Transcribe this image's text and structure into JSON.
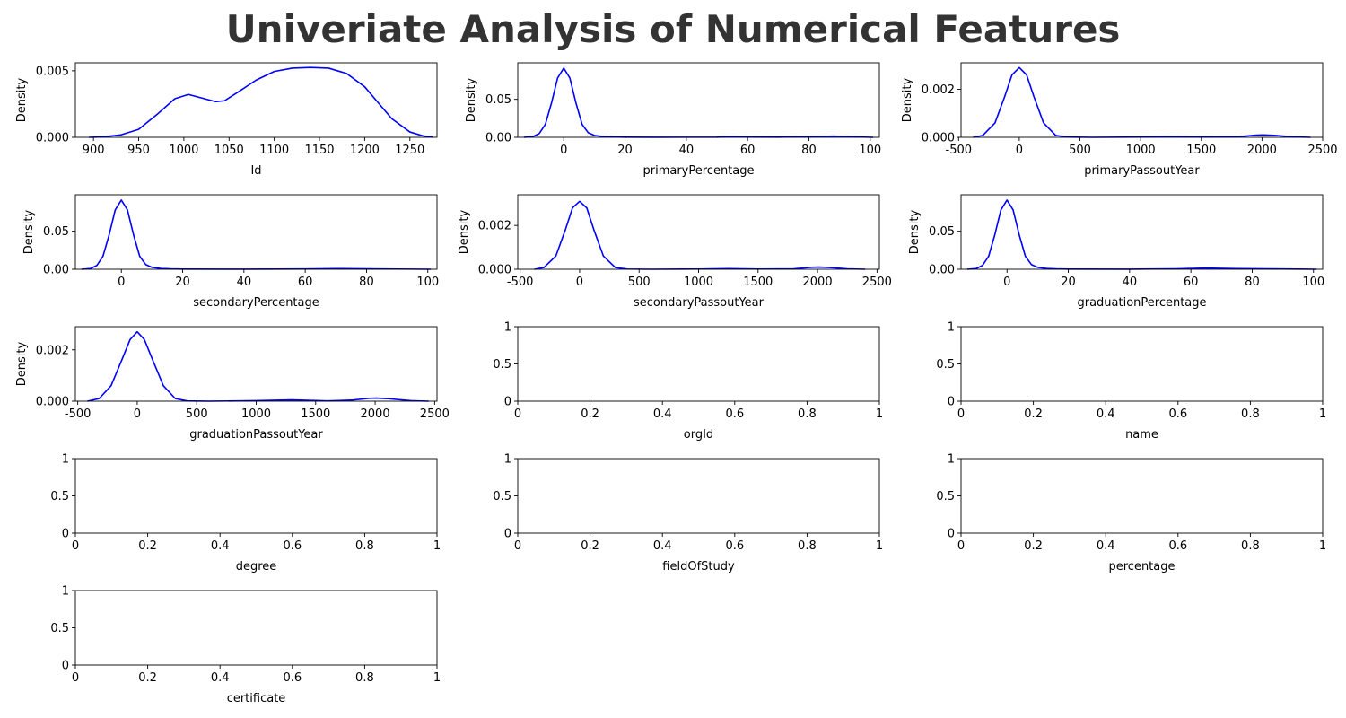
{
  "title": "Univeriate Analysis of Numerical Features",
  "colors": {
    "line": "#0000ff",
    "axis": "#000000",
    "title": "#333333"
  },
  "chart_data": [
    {
      "type": "line",
      "xlabel": "Id",
      "ylabel": "Density",
      "xlim": [
        880,
        1280
      ],
      "ylim": [
        0,
        0.0056
      ],
      "xticks": [
        900,
        950,
        1000,
        1050,
        1100,
        1150,
        1200,
        1250
      ],
      "yticks": [
        0,
        0.005
      ],
      "ytick_labels": [
        "0.000",
        "0.005"
      ],
      "x": [
        895,
        910,
        930,
        950,
        970,
        990,
        1005,
        1020,
        1035,
        1045,
        1060,
        1080,
        1100,
        1120,
        1140,
        1160,
        1180,
        1200,
        1215,
        1230,
        1250,
        1265,
        1275
      ],
      "y": [
        0.0,
        3e-05,
        0.00018,
        0.0006,
        0.0017,
        0.0029,
        0.00322,
        0.00295,
        0.00268,
        0.00275,
        0.0034,
        0.0043,
        0.00495,
        0.0052,
        0.00525,
        0.0052,
        0.0048,
        0.0038,
        0.0026,
        0.0014,
        0.0004,
        0.0001,
        2e-05
      ]
    },
    {
      "type": "line",
      "xlabel": "primaryPercentage",
      "ylabel": "Density",
      "xlim": [
        -15,
        103
      ],
      "ylim": [
        0,
        0.098
      ],
      "xticks": [
        0,
        20,
        40,
        60,
        80,
        100
      ],
      "yticks": [
        0,
        0.05
      ],
      "ytick_labels": [
        "0.00",
        "0.05"
      ],
      "x": [
        -13,
        -10,
        -8,
        -6,
        -4,
        -2,
        0,
        2,
        4,
        6,
        8,
        10,
        13,
        16,
        20,
        30,
        50,
        55,
        60,
        70,
        80,
        88,
        95,
        101
      ],
      "y": [
        0.0,
        0.001,
        0.005,
        0.017,
        0.045,
        0.078,
        0.091,
        0.078,
        0.045,
        0.017,
        0.006,
        0.0025,
        0.001,
        0.0005,
        0.0002,
        0.0001,
        0.0002,
        0.0008,
        0.0004,
        0.0002,
        0.0008,
        0.0015,
        0.0006,
        0.0
      ]
    },
    {
      "type": "line",
      "xlabel": "primaryPassoutYear",
      "ylabel": "Density",
      "xlim": [
        -480,
        2500
      ],
      "ylim": [
        0,
        0.0031
      ],
      "xticks": [
        -500,
        0,
        500,
        1000,
        1500,
        2000,
        2500
      ],
      "yticks": [
        0,
        0.002
      ],
      "ytick_labels": [
        "0.000",
        "0.002"
      ],
      "x": [
        -380,
        -300,
        -200,
        -120,
        -60,
        0,
        60,
        120,
        200,
        300,
        400,
        600,
        1000,
        1250,
        1500,
        1800,
        1950,
        2010,
        2100,
        2250,
        2400
      ],
      "y": [
        0.0,
        8e-05,
        0.0006,
        0.0017,
        0.0026,
        0.0029,
        0.0026,
        0.0017,
        0.0006,
        8e-05,
        1e-05,
        0.0,
        1e-05,
        3e-05,
        1e-05,
        2e-05,
        9e-05,
        0.0001,
        8e-05,
        2e-05,
        0.0
      ]
    },
    {
      "type": "line",
      "xlabel": "secondaryPercentage",
      "ylabel": "Density",
      "xlim": [
        -15,
        103
      ],
      "ylim": [
        0,
        0.098
      ],
      "xticks": [
        0,
        20,
        40,
        60,
        80,
        100
      ],
      "yticks": [
        0,
        0.05
      ],
      "ytick_labels": [
        "0.00",
        "0.05"
      ],
      "x": [
        -13,
        -10,
        -8,
        -6,
        -4,
        -2,
        0,
        2,
        4,
        6,
        8,
        10,
        13,
        16,
        20,
        40,
        60,
        70,
        80,
        90,
        101
      ],
      "y": [
        0.0,
        0.001,
        0.005,
        0.017,
        0.045,
        0.078,
        0.091,
        0.078,
        0.045,
        0.017,
        0.006,
        0.0025,
        0.001,
        0.0005,
        0.0002,
        0.0001,
        0.0004,
        0.0009,
        0.0005,
        0.0003,
        0.0
      ]
    },
    {
      "type": "line",
      "xlabel": "secondaryPassoutYear",
      "ylabel": "Density",
      "xlim": [
        -520,
        2520
      ],
      "ylim": [
        0,
        0.0034
      ],
      "xticks": [
        -500,
        0,
        500,
        1000,
        1500,
        2000,
        2500
      ],
      "yticks": [
        0,
        0.002
      ],
      "ytick_labels": [
        "0.000",
        "0.002"
      ],
      "x": [
        -380,
        -300,
        -200,
        -120,
        -60,
        0,
        60,
        120,
        200,
        300,
        400,
        600,
        1000,
        1250,
        1500,
        1800,
        1950,
        2010,
        2100,
        2250,
        2400
      ],
      "y": [
        0.0,
        8e-05,
        0.0006,
        0.0018,
        0.0028,
        0.0031,
        0.0028,
        0.0018,
        0.0006,
        8e-05,
        1e-05,
        0.0,
        1e-05,
        3e-05,
        1e-05,
        2e-05,
        9e-05,
        0.0001,
        8e-05,
        2e-05,
        0.0
      ]
    },
    {
      "type": "line",
      "xlabel": "graduationPercentage",
      "ylabel": "Density",
      "xlim": [
        -15,
        103
      ],
      "ylim": [
        0,
        0.098
      ],
      "xticks": [
        0,
        20,
        40,
        60,
        80,
        100
      ],
      "yticks": [
        0,
        0.05
      ],
      "ytick_labels": [
        "0.00",
        "0.05"
      ],
      "x": [
        -13,
        -10,
        -8,
        -6,
        -4,
        -2,
        0,
        2,
        4,
        6,
        8,
        10,
        13,
        16,
        20,
        40,
        55,
        65,
        75,
        85,
        95,
        101
      ],
      "y": [
        0.0,
        0.001,
        0.005,
        0.017,
        0.045,
        0.078,
        0.091,
        0.078,
        0.045,
        0.017,
        0.006,
        0.0025,
        0.001,
        0.0005,
        0.0002,
        0.0001,
        0.0006,
        0.0015,
        0.0008,
        0.0005,
        0.0002,
        0.0
      ]
    },
    {
      "type": "line",
      "xlabel": "graduationPassoutYear",
      "ylabel": "Density",
      "xlim": [
        -520,
        2520
      ],
      "ylim": [
        0,
        0.0029
      ],
      "xticks": [
        -500,
        0,
        500,
        1000,
        1500,
        2000,
        2500
      ],
      "yticks": [
        0,
        0.002
      ],
      "ytick_labels": [
        "0.000",
        "0.002"
      ],
      "x": [
        -420,
        -320,
        -220,
        -130,
        -60,
        0,
        60,
        130,
        220,
        320,
        420,
        600,
        1000,
        1300,
        1600,
        1800,
        1950,
        2010,
        2100,
        2300,
        2450
      ],
      "y": [
        0.0,
        0.0001,
        0.0006,
        0.0016,
        0.0024,
        0.0027,
        0.0024,
        0.0016,
        0.0006,
        0.0001,
        1e-05,
        0.0,
        2e-05,
        5e-05,
        1e-05,
        4e-05,
        0.00011,
        0.00012,
        0.0001,
        2e-05,
        0.0
      ]
    },
    {
      "type": "line",
      "xlabel": "orgId",
      "xlim": [
        0,
        1
      ],
      "ylim": [
        0,
        1
      ],
      "xticks": [
        0,
        0.2,
        0.4,
        0.6,
        0.8,
        1.0
      ],
      "yticks": [
        0,
        0.5,
        1.0
      ]
    },
    {
      "type": "line",
      "xlabel": "name",
      "xlim": [
        0,
        1
      ],
      "ylim": [
        0,
        1
      ],
      "xticks": [
        0,
        0.2,
        0.4,
        0.6,
        0.8,
        1.0
      ],
      "yticks": [
        0,
        0.5,
        1.0
      ]
    },
    {
      "type": "line",
      "xlabel": "degree",
      "xlim": [
        0,
        1
      ],
      "ylim": [
        0,
        1
      ],
      "xticks": [
        0,
        0.2,
        0.4,
        0.6,
        0.8,
        1.0
      ],
      "yticks": [
        0,
        0.5,
        1.0
      ]
    },
    {
      "type": "line",
      "xlabel": "fieldOfStudy",
      "xlim": [
        0,
        1
      ],
      "ylim": [
        0,
        1
      ],
      "xticks": [
        0,
        0.2,
        0.4,
        0.6,
        0.8,
        1.0
      ],
      "yticks": [
        0,
        0.5,
        1.0
      ]
    },
    {
      "type": "line",
      "xlabel": "percentage",
      "xlim": [
        0,
        1
      ],
      "ylim": [
        0,
        1
      ],
      "xticks": [
        0,
        0.2,
        0.4,
        0.6,
        0.8,
        1.0
      ],
      "yticks": [
        0,
        0.5,
        1.0
      ]
    },
    {
      "type": "line",
      "xlabel": "certificate",
      "xlim": [
        0,
        1
      ],
      "ylim": [
        0,
        1
      ],
      "xticks": [
        0,
        0.2,
        0.4,
        0.6,
        0.8,
        1.0
      ],
      "yticks": [
        0,
        0.5,
        1.0
      ]
    }
  ]
}
